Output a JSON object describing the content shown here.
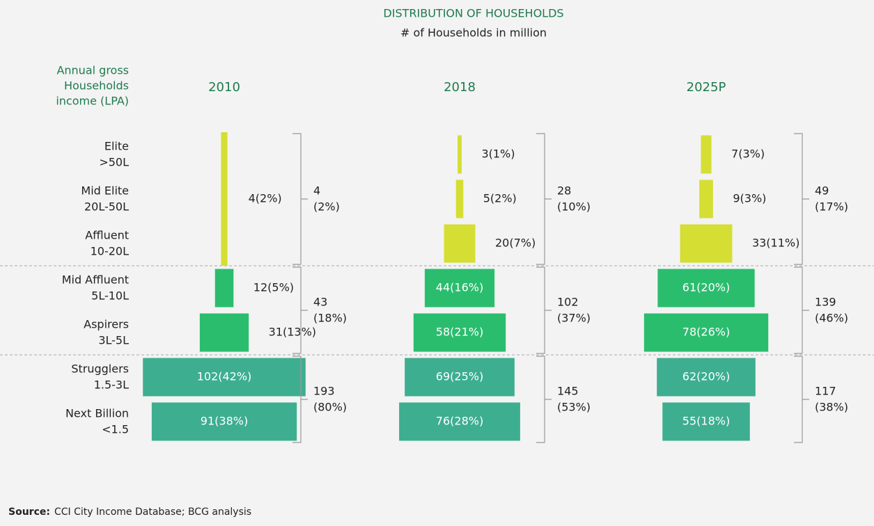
{
  "chart_data": {
    "type": "pyramid",
    "title": "DISTRIBUTION OF HOUSEHOLDS",
    "subtitle": "# of Households in million",
    "row_header": [
      "Annual gross",
      "Households",
      "income (LPA)"
    ],
    "categories": [
      [
        "Elite",
        ">50L"
      ],
      [
        "Mid Elite",
        "20L-50L"
      ],
      [
        "Affluent",
        "10-20L"
      ],
      [
        "Mid Affluent",
        "5L-10L"
      ],
      [
        "Aspirers",
        "3L-5L"
      ],
      [
        "Strugglers",
        "1.5-3L"
      ],
      [
        "Next Billion",
        "<1.5"
      ]
    ],
    "group_colors": [
      "#d5de33",
      "#2bbd6e",
      "#3eae90"
    ],
    "series": [
      {
        "name": "2010",
        "values": [
          null,
          null,
          null,
          12,
          31,
          102,
          91
        ],
        "value_labels": [
          null,
          null,
          null,
          "12(5%)",
          "31(13%)",
          "102(42%)",
          "91(38%)"
        ],
        "combined": {
          "value": 4,
          "label": "4(2%)"
        },
        "group_totals": [
          4,
          43,
          193
        ],
        "group_shares": [
          "(2%)",
          "(18%)",
          "(80%)"
        ]
      },
      {
        "name": "2018",
        "values": [
          3,
          5,
          20,
          44,
          58,
          69,
          76
        ],
        "value_labels": [
          "3(1%)",
          "5(2%)",
          "20(7%)",
          "44(16%)",
          "58(21%)",
          "69(25%)",
          "76(28%)"
        ],
        "group_totals": [
          28,
          102,
          145
        ],
        "group_shares": [
          "(10%)",
          "(37%)",
          "(53%)"
        ]
      },
      {
        "name": "2025P",
        "values": [
          7,
          9,
          33,
          61,
          78,
          62,
          55
        ],
        "value_labels": [
          "7(3%)",
          "9(3%)",
          "33(11%)",
          "61(20%)",
          "78(26%)",
          "62(20%)",
          "55(18%)"
        ],
        "group_totals": [
          49,
          139,
          117
        ],
        "group_shares": [
          "(17%)",
          "(46%)",
          "(38%)"
        ]
      }
    ],
    "source": {
      "label": "Source:",
      "text": "CCI City Income Database; BCG analysis"
    }
  }
}
